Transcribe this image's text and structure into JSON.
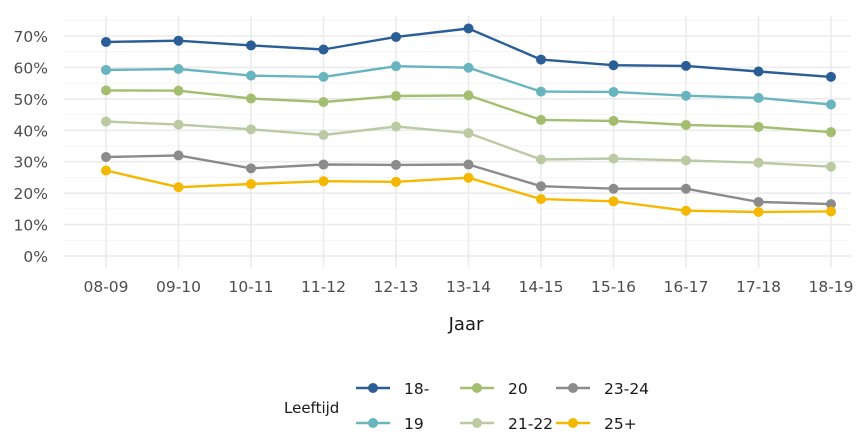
{
  "chart_data": {
    "type": "line",
    "xlabel": "Jaar",
    "ylabel": "",
    "categories": [
      "08-09",
      "09-10",
      "10-11",
      "11-12",
      "12-13",
      "13-14",
      "14-15",
      "15-16",
      "16-17",
      "17-18",
      "18-19"
    ],
    "y_ticks": [
      "0%",
      "10%",
      "20%",
      "30%",
      "40%",
      "50%",
      "60%",
      "70%"
    ],
    "ylim": [
      0,
      0.7
    ],
    "grid": true,
    "legend": {
      "title": "Leeftijd",
      "position": "bottom"
    },
    "series": [
      {
        "name": "18-",
        "color": "#2b5e96",
        "values": [
          0.681,
          0.685,
          0.67,
          0.657,
          0.697,
          0.724,
          0.625,
          0.607,
          0.605,
          0.587,
          0.57
        ]
      },
      {
        "name": "19",
        "color": "#68b5c0",
        "values": [
          0.592,
          0.595,
          0.574,
          0.57,
          0.604,
          0.599,
          0.523,
          0.522,
          0.51,
          0.503,
          0.482
        ]
      },
      {
        "name": "20",
        "color": "#a3be6e",
        "values": [
          0.527,
          0.526,
          0.501,
          0.49,
          0.509,
          0.511,
          0.433,
          0.43,
          0.417,
          0.411,
          0.394
        ]
      },
      {
        "name": "21-22",
        "color": "#bccaa4",
        "values": [
          0.428,
          0.418,
          0.403,
          0.385,
          0.412,
          0.391,
          0.307,
          0.31,
          0.304,
          0.297,
          0.284
        ]
      },
      {
        "name": "23-24",
        "color": "#8b8b8b",
        "values": [
          0.315,
          0.32,
          0.279,
          0.291,
          0.29,
          0.291,
          0.222,
          0.214,
          0.214,
          0.172,
          0.165
        ]
      },
      {
        "name": "25+",
        "color": "#f5b800",
        "values": [
          0.272,
          0.219,
          0.229,
          0.238,
          0.236,
          0.249,
          0.181,
          0.174,
          0.144,
          0.14,
          0.142
        ]
      }
    ]
  }
}
